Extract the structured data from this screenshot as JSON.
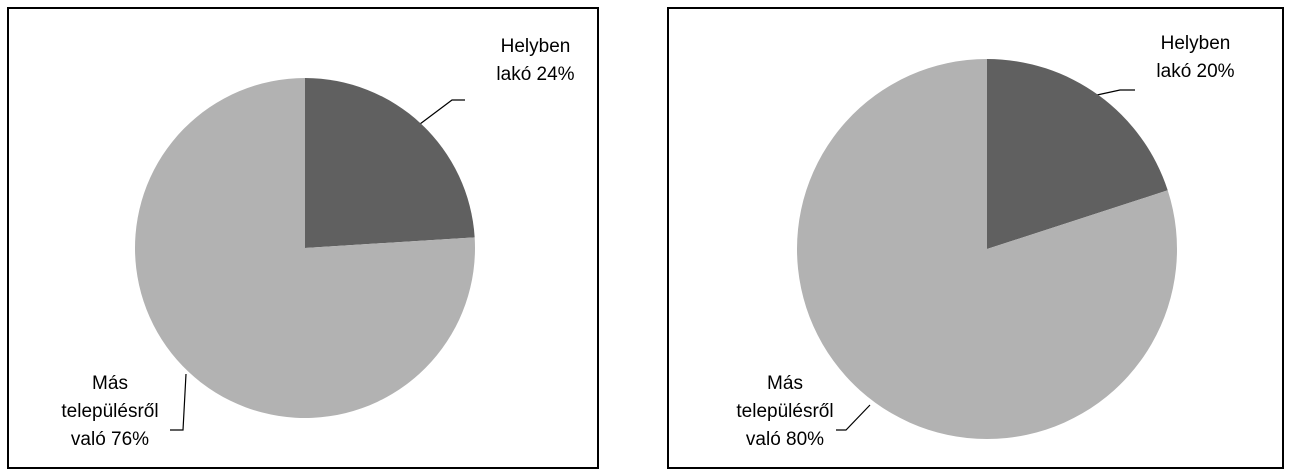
{
  "chart_data": [
    {
      "type": "pie",
      "categories": [
        "Helyben lakó",
        "Más településről való"
      ],
      "values": [
        24,
        76
      ],
      "value_labels": [
        "24%",
        "76%"
      ],
      "colors": [
        "#606060",
        "#b2b2b2"
      ]
    },
    {
      "type": "pie",
      "categories": [
        "Helyben lakó",
        "Más településről való"
      ],
      "values": [
        20,
        80
      ],
      "value_labels": [
        "20%",
        "80%"
      ],
      "colors": [
        "#606060",
        "#b2b2b2"
      ]
    }
  ]
}
